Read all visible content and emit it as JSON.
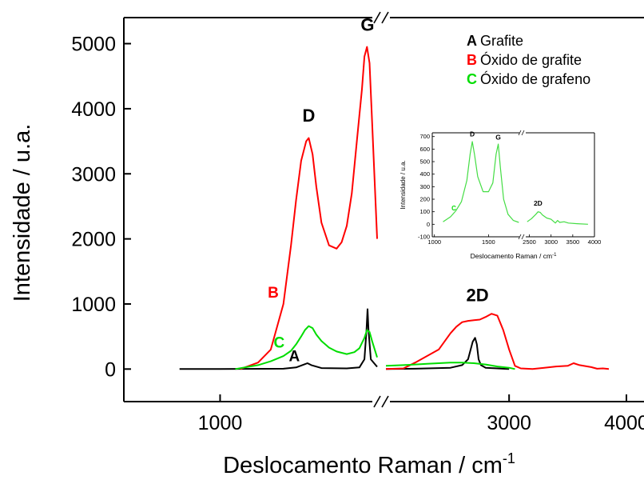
{
  "chart_data": {
    "type": "line",
    "xlabel": "Deslocamento Raman / cm",
    "xlabel_sup": "-1",
    "ylabel": "Intensidade / u.a.",
    "ylim": [
      -500,
      5400
    ],
    "yticks": [
      0,
      1000,
      2000,
      3000,
      4000,
      5000
    ],
    "x_segments": [
      {
        "range": [
          620,
          1620
        ],
        "ticks": [
          1000
        ]
      },
      {
        "range": [
          1950,
          4150
        ],
        "ticks": [
          3000,
          4000
        ]
      }
    ],
    "axis_break": true,
    "legend_position": "top-right",
    "legend": [
      {
        "letter": "A",
        "label": "Grafite",
        "color": "#000000"
      },
      {
        "letter": "B",
        "label": "Óxido de grafite",
        "color": "#ff0000"
      },
      {
        "letter": "C",
        "label": "Óxido de grafeno",
        "color": "#00dd00"
      }
    ],
    "peak_labels": [
      {
        "text": "D",
        "x": 1350,
        "y": 3800
      },
      {
        "text": "G",
        "x": 1582,
        "y": 5200
      },
      {
        "text": "2D",
        "x": 2730,
        "y": 1040
      }
    ],
    "curve_labels": [
      {
        "text": "B",
        "x": 1210,
        "y": 1100,
        "color": "#ff0000"
      },
      {
        "text": "C",
        "x": 1233,
        "y": 330,
        "color": "#00dd00"
      },
      {
        "text": "A",
        "x": 1293,
        "y": 120,
        "color": "#000000"
      }
    ],
    "series": [
      {
        "name": "A Grafite",
        "color": "#000000",
        "x": [
          840,
          1000,
          1250,
          1300,
          1345,
          1360,
          1400,
          1500,
          1550,
          1570,
          1578,
          1582,
          1586,
          1595,
          1620,
          1650,
          1700,
          1750,
          1950,
          2200,
          2500,
          2600,
          2650,
          2690,
          2710,
          2725,
          2740,
          2760,
          2800,
          2900,
          3000
        ],
        "y": [
          0,
          0,
          5,
          25,
          90,
          60,
          15,
          10,
          25,
          150,
          600,
          920,
          600,
          150,
          35,
          10,
          5,
          0,
          0,
          5,
          20,
          60,
          150,
          420,
          480,
          380,
          150,
          60,
          20,
          10,
          0
        ]
      },
      {
        "name": "B Óxido de grafite",
        "color": "#ff0000",
        "x": [
          1080,
          1150,
          1200,
          1250,
          1280,
          1300,
          1320,
          1340,
          1350,
          1365,
          1380,
          1400,
          1430,
          1460,
          1480,
          1500,
          1520,
          1540,
          1560,
          1570,
          1580,
          1590,
          1600,
          1620,
          1650,
          1680,
          1700,
          1750,
          1800,
          1850,
          1950,
          2100,
          2200,
          2400,
          2500,
          2550,
          2600,
          2650,
          2700,
          2750,
          2800,
          2850,
          2900,
          2950,
          3000,
          3050,
          3100,
          3200,
          3300,
          3400,
          3500,
          3550,
          3600,
          3700,
          3750,
          3800,
          3850
        ],
        "y": [
          0,
          100,
          300,
          1000,
          1900,
          2600,
          3200,
          3500,
          3550,
          3300,
          2800,
          2250,
          1900,
          1850,
          1950,
          2200,
          2700,
          3500,
          4300,
          4800,
          4950,
          4700,
          3800,
          2000,
          900,
          450,
          250,
          100,
          40,
          10,
          0,
          10,
          100,
          300,
          550,
          650,
          720,
          740,
          750,
          760,
          800,
          850,
          820,
          600,
          300,
          50,
          10,
          0,
          20,
          40,
          50,
          90,
          60,
          30,
          5,
          10,
          0
        ]
      },
      {
        "name": "C Óxido de grafeno",
        "color": "#00dd00",
        "x": [
          1060,
          1150,
          1200,
          1250,
          1280,
          1300,
          1320,
          1335,
          1350,
          1365,
          1380,
          1400,
          1430,
          1460,
          1500,
          1530,
          1550,
          1570,
          1580,
          1590,
          1600,
          1620,
          1650,
          1700,
          1750,
          1950,
          2100,
          2200,
          2300,
          2400,
          2500,
          2600,
          2700,
          2800,
          2900,
          3000,
          3050
        ],
        "y": [
          0,
          60,
          120,
          200,
          280,
          380,
          500,
          600,
          660,
          630,
          530,
          430,
          330,
          270,
          230,
          260,
          320,
          480,
          600,
          570,
          430,
          180,
          60,
          15,
          0,
          50,
          60,
          70,
          80,
          90,
          100,
          100,
          90,
          70,
          40,
          20,
          0
        ]
      }
    ],
    "inset": {
      "type": "line",
      "xlabel": "Deslocamento Raman / cm",
      "xlabel_sup": "-1",
      "ylabel": "Intensidade / u.a.",
      "ylim": [
        -100,
        730
      ],
      "yticks": [
        -100,
        0,
        100,
        200,
        300,
        400,
        500,
        600,
        700
      ],
      "x_segments": [
        {
          "range": [
            980,
            1800
          ],
          "ticks": [
            1000,
            1500
          ]
        },
        {
          "range": [
            2380,
            4000
          ],
          "ticks": [
            2500,
            3000,
            3500,
            4000
          ]
        }
      ],
      "peak_labels": [
        {
          "text": "D",
          "x": 1350,
          "y": 700
        },
        {
          "text": "G",
          "x": 1590,
          "y": 675
        },
        {
          "text": "2D",
          "x": 2700,
          "y": 150
        }
      ],
      "curve_label": {
        "text": "C",
        "x": 1040,
        "y": 130,
        "color": "#00dd00"
      },
      "series": [
        {
          "name": "C Óxido de grafeno",
          "color": "#44dd44",
          "x": [
            1080,
            1150,
            1200,
            1250,
            1300,
            1330,
            1350,
            1370,
            1400,
            1450,
            1500,
            1540,
            1570,
            1590,
            1610,
            1640,
            1680,
            1730,
            1780,
            2450,
            2550,
            2650,
            2700,
            2750,
            2800,
            2900,
            3000,
            3100,
            3150,
            3200,
            3300,
            3400,
            3600,
            3850
          ],
          "y": [
            20,
            60,
            110,
            180,
            350,
            560,
            660,
            560,
            380,
            260,
            260,
            330,
            560,
            640,
            450,
            200,
            80,
            30,
            15,
            20,
            45,
            80,
            100,
            95,
            75,
            50,
            40,
            10,
            30,
            15,
            20,
            10,
            5,
            0
          ]
        }
      ]
    }
  }
}
